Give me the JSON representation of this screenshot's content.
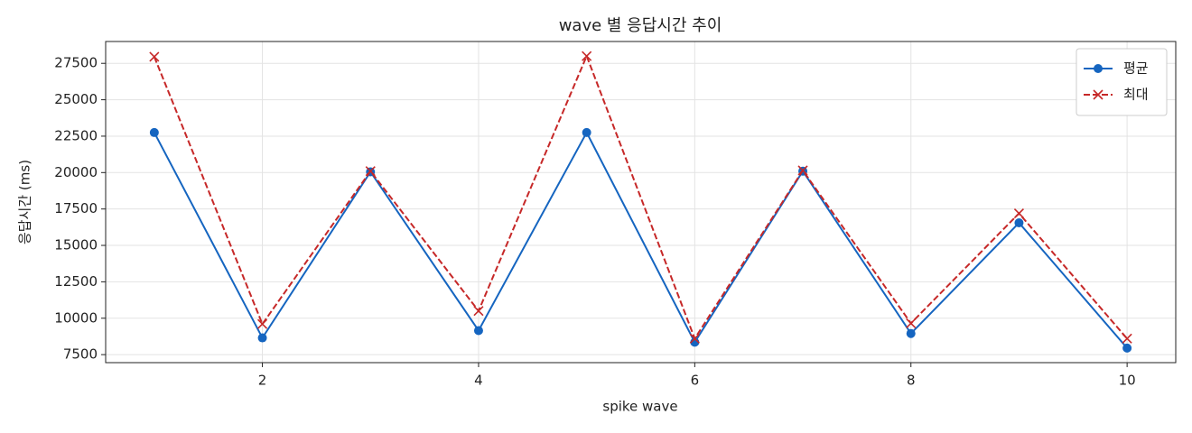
{
  "chart_data": {
    "type": "line",
    "title": "wave 별 응답시간 추이",
    "x_label": "spike wave",
    "y_label": "응답시간 (ms)",
    "x": [
      1,
      2,
      3,
      4,
      5,
      6,
      7,
      8,
      9,
      10
    ],
    "series": [
      {
        "name": "평균",
        "color": "#1565c0",
        "marker": "circle",
        "dash": "solid",
        "values": [
          22750,
          8650,
          20050,
          9150,
          22750,
          8350,
          20100,
          8950,
          16550,
          7950
        ]
      },
      {
        "name": "최대",
        "color": "#c62828",
        "marker": "x",
        "dash": "dashed",
        "values": [
          27950,
          9600,
          20100,
          10500,
          28000,
          8600,
          20150,
          9650,
          17200,
          8600
        ]
      }
    ],
    "xlim": [
      0.55,
      10.45
    ],
    "xticks": [
      2,
      4,
      6,
      8,
      10
    ],
    "ylim": [
      6950,
      29000
    ],
    "yticks": [
      7500,
      10000,
      12500,
      15000,
      17500,
      20000,
      22500,
      25000,
      27500
    ],
    "grid": true,
    "legend": "upper right"
  }
}
